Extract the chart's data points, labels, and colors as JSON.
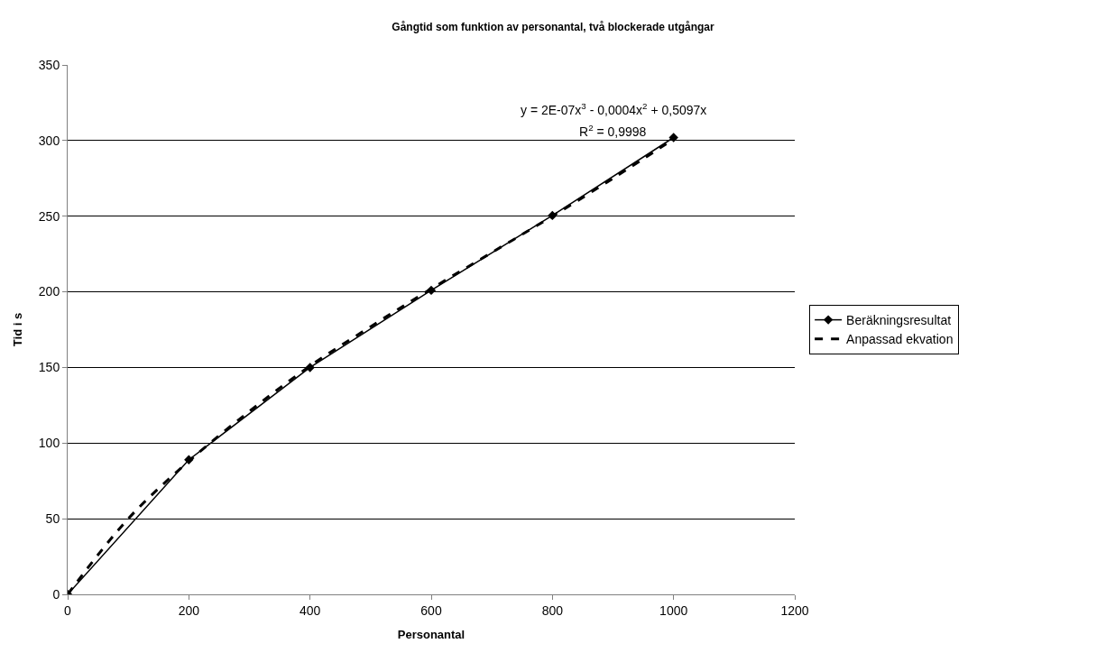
{
  "chart_data": {
    "type": "line",
    "title": "Gångtid som funktion av personantal, två blockerade utgångar",
    "xlabel": "Personantal",
    "ylabel": "Tid i s",
    "xlim": [
      0,
      1200
    ],
    "xticks": [
      0,
      200,
      400,
      600,
      800,
      1000,
      1200
    ],
    "ylim": [
      0,
      350
    ],
    "yticks": [
      0,
      50,
      100,
      150,
      200,
      250,
      300,
      350
    ],
    "grid": "y",
    "legend": "right",
    "series": [
      {
        "name": "Beräkningsresultat",
        "color": "#000000",
        "x": [
          0,
          200,
          400,
          600,
          800,
          1000
        ],
        "values": [
          0,
          89,
          150,
          201,
          250.5,
          302
        ],
        "marker": "diamond",
        "line_style": "solid"
      },
      {
        "name": "Anpassad ekvation",
        "color": "#000000",
        "x": [
          0,
          100,
          200,
          300,
          400,
          500,
          600,
          700,
          800,
          900,
          1000
        ],
        "values": [
          0,
          50,
          88,
          121,
          151,
          177,
          202,
          226,
          250,
          275,
          301
        ],
        "marker": "none",
        "line_style": "dashed"
      }
    ],
    "annotations": [
      "y = 2E-07x$^{3}$ - 0,0004x$^{2}$ + 0,5097x",
      "R$^{2}$ = 0,9998"
    ]
  }
}
